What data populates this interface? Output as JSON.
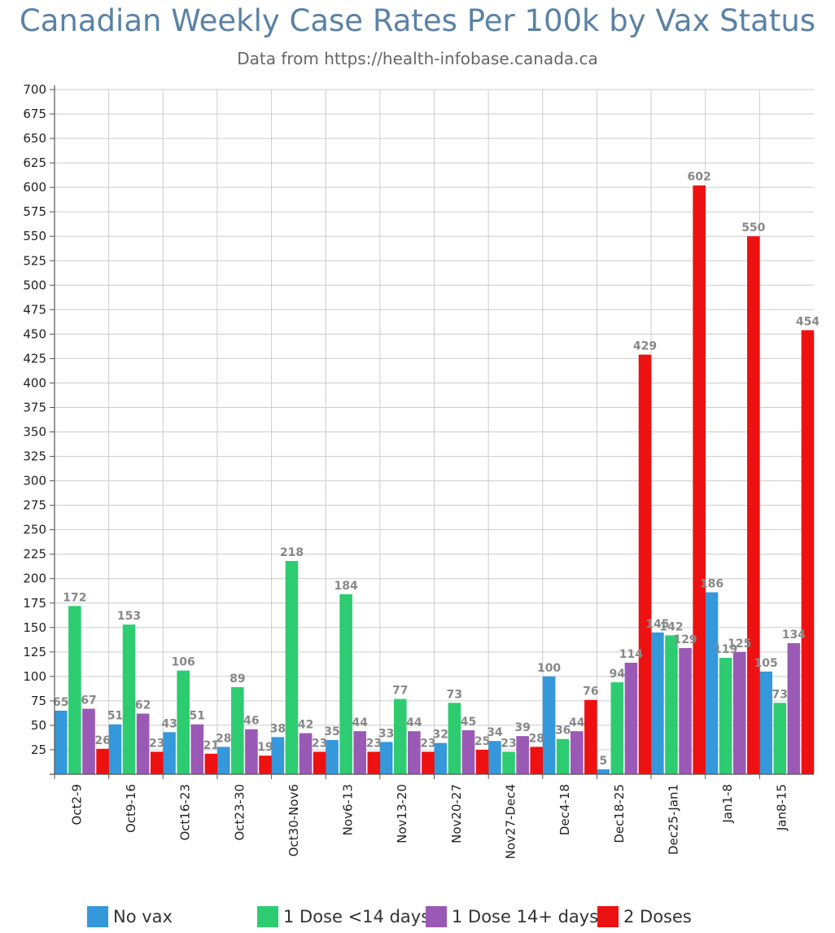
{
  "chart_data": {
    "type": "bar",
    "title": "Canadian Weekly Case Rates Per 100k by Vax Status",
    "subtitle": "Data from https://health-infobase.canada.ca",
    "categories": [
      "Oct2-9",
      "Oct9-16",
      "Oct16-23",
      "Oct23-30",
      "Oct30-Nov6",
      "Nov6-13",
      "Nov13-20",
      "Nov20-27",
      "Nov27-Dec4",
      "Dec4-18",
      "Dec18-25",
      "Dec25-Jan1",
      "Jan1-8",
      "Jan8-15"
    ],
    "series": [
      {
        "name": "No vax",
        "color": "#3498db",
        "values": [
          65,
          51,
          43,
          28,
          38,
          35,
          33,
          32,
          34,
          100,
          5,
          145,
          186,
          105
        ]
      },
      {
        "name": "1 Dose <14 days",
        "color": "#2ecc71",
        "values": [
          172,
          153,
          106,
          89,
          218,
          184,
          77,
          73,
          23,
          36,
          94,
          142,
          119,
          73
        ]
      },
      {
        "name": "1 Dose 14+ days",
        "color": "#9b59b6",
        "values": [
          67,
          62,
          51,
          46,
          42,
          44,
          44,
          45,
          39,
          44,
          114,
          129,
          125,
          134
        ]
      },
      {
        "name": "2 Doses",
        "color": "#ee1111",
        "values": [
          26,
          23,
          21,
          19,
          23,
          23,
          23,
          25,
          28,
          76,
          429,
          602,
          550,
          454
        ]
      }
    ],
    "y_ticks": [
      25,
      50,
      75,
      100,
      125,
      150,
      175,
      200,
      225,
      250,
      275,
      300,
      325,
      350,
      375,
      400,
      425,
      450,
      475,
      500,
      525,
      550,
      575,
      600,
      625,
      650,
      675,
      700
    ],
    "ylim": [
      0,
      700
    ],
    "grid": true,
    "legend_position": "bottom",
    "xlabel": "",
    "ylabel": ""
  }
}
